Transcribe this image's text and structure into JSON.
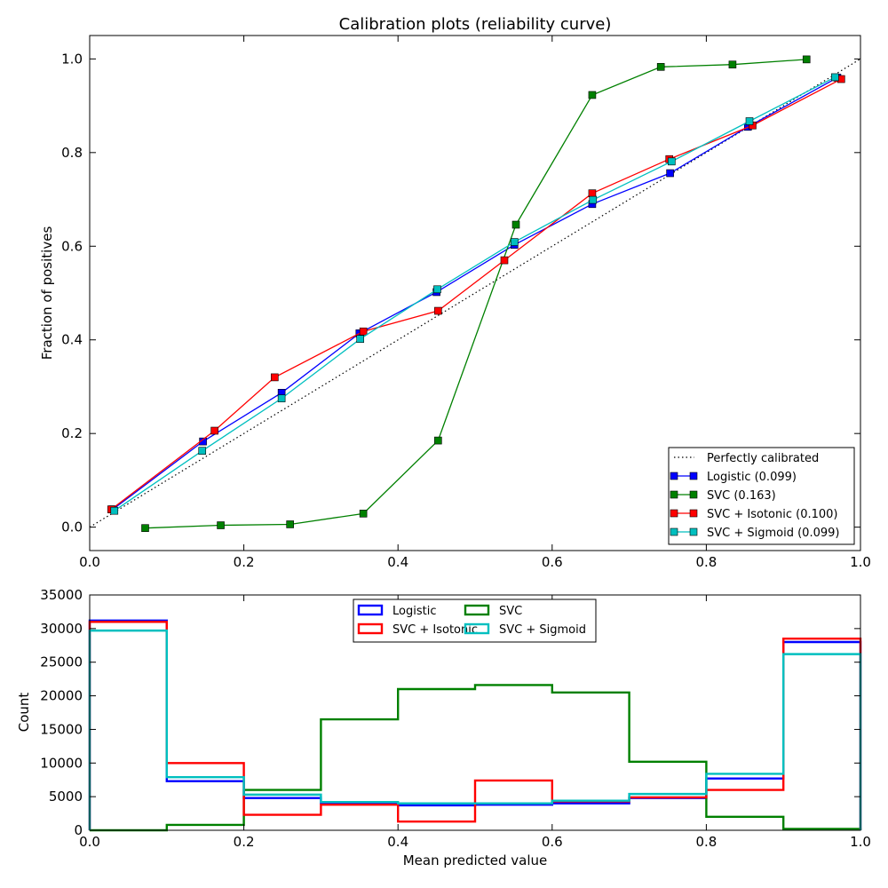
{
  "chart_data": [
    {
      "type": "line",
      "title": "Calibration plots  (reliability curve)",
      "xlabel": "",
      "ylabel": "Fraction of positives",
      "xlim": [
        0.0,
        1.0
      ],
      "ylim": [
        -0.05,
        1.05
      ],
      "xticks": [
        "0.0",
        "0.2",
        "0.4",
        "0.6",
        "0.8",
        "1.0"
      ],
      "yticks": [
        "0.0",
        "0.2",
        "0.4",
        "0.6",
        "0.8",
        "1.0"
      ],
      "legend_placement": "lower-right",
      "grid": false,
      "series": [
        {
          "name": "Perfectly calibrated",
          "color": "#000000",
          "style": "dotted",
          "marker": "none",
          "x": [
            0.0,
            1.0
          ],
          "y": [
            0.0,
            1.0
          ]
        },
        {
          "name": "Logistic (0.099)",
          "color": "#0000ff",
          "style": "solid",
          "marker": "square",
          "x": [
            0.03,
            0.147,
            0.249,
            0.35,
            0.45,
            0.551,
            0.652,
            0.753,
            0.854,
            0.97
          ],
          "y": [
            0.038,
            0.183,
            0.287,
            0.414,
            0.502,
            0.603,
            0.69,
            0.756,
            0.855,
            0.96
          ]
        },
        {
          "name": "SVC (0.163)",
          "color": "#008000",
          "style": "solid",
          "marker": "square",
          "x": [
            0.072,
            0.17,
            0.26,
            0.355,
            0.452,
            0.553,
            0.652,
            0.741,
            0.834,
            0.93
          ],
          "y": [
            -0.002,
            0.004,
            0.006,
            0.029,
            0.185,
            0.646,
            0.923,
            0.983,
            0.988,
            0.999
          ]
        },
        {
          "name": "SVC + Isotonic (0.100)",
          "color": "#ff0000",
          "style": "solid",
          "marker": "square",
          "x": [
            0.028,
            0.162,
            0.24,
            0.355,
            0.452,
            0.538,
            0.652,
            0.752,
            0.86,
            0.975
          ],
          "y": [
            0.038,
            0.206,
            0.32,
            0.418,
            0.462,
            0.57,
            0.713,
            0.786,
            0.858,
            0.957
          ]
        },
        {
          "name": "SVC + Sigmoid (0.099)",
          "color": "#00bfbf",
          "style": "solid",
          "marker": "square",
          "x": [
            0.032,
            0.146,
            0.249,
            0.351,
            0.451,
            0.551,
            0.653,
            0.755,
            0.856,
            0.967
          ],
          "y": [
            0.035,
            0.163,
            0.275,
            0.402,
            0.508,
            0.609,
            0.699,
            0.781,
            0.867,
            0.961
          ]
        }
      ]
    },
    {
      "type": "step-histogram",
      "title": "",
      "xlabel": "Mean predicted value",
      "ylabel": "Count",
      "xlim": [
        0.0,
        1.0
      ],
      "ylim": [
        0,
        35000
      ],
      "xticks": [
        "0.0",
        "0.2",
        "0.4",
        "0.6",
        "0.8",
        "1.0"
      ],
      "yticks": [
        "0",
        "5000",
        "10000",
        "15000",
        "20000",
        "25000",
        "30000",
        "35000"
      ],
      "legend_placement": "upper-center",
      "grid": false,
      "bins": [
        0.0,
        0.1,
        0.2,
        0.3,
        0.4,
        0.5,
        0.6,
        0.7,
        0.8,
        0.9,
        1.0
      ],
      "series": [
        {
          "name": "Logistic",
          "color": "#0000ff",
          "values": [
            31200,
            7300,
            4800,
            4000,
            3700,
            3800,
            4000,
            4800,
            7700,
            28000
          ]
        },
        {
          "name": "SVC",
          "color": "#008000",
          "values": [
            0,
            800,
            6000,
            16500,
            21000,
            21600,
            20500,
            10200,
            2000,
            200
          ]
        },
        {
          "name": "SVC + Isotonic",
          "color": "#ff0000",
          "values": [
            31000,
            10000,
            2300,
            3800,
            1300,
            7400,
            4300,
            4900,
            6000,
            28500
          ]
        },
        {
          "name": "SVC + Sigmoid",
          "color": "#00bfbf",
          "values": [
            29700,
            7900,
            5300,
            4200,
            4000,
            4000,
            4400,
            5400,
            8400,
            26200
          ]
        }
      ]
    }
  ]
}
